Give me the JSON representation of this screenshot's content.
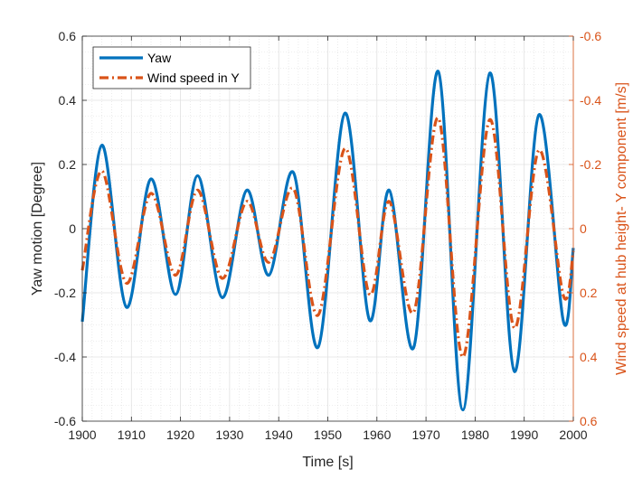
{
  "chart_data": {
    "type": "line",
    "title": "",
    "xlabel": "Time [s]",
    "ylabel": "Yaw motion [Degree]",
    "ylabel_right": "Wind speed at hub height- Y component [m/s]",
    "xlim": [
      1900,
      2000
    ],
    "ylim": [
      -0.6,
      0.6
    ],
    "ylim_right": [
      0.6,
      -0.6
    ],
    "right_axis_reversed": true,
    "xticks": [
      1900,
      1910,
      1920,
      1930,
      1940,
      1950,
      1960,
      1970,
      1980,
      1990,
      2000
    ],
    "yticks": [
      -0.6,
      -0.4,
      -0.2,
      0,
      0.2,
      0.4,
      0.6
    ],
    "yticks_right": [
      -0.6,
      -0.4,
      -0.2,
      0,
      0.2,
      0.4,
      0.6
    ],
    "xtick_labels": [
      "1900",
      "1910",
      "1920",
      "1930",
      "1940",
      "1950",
      "1960",
      "1970",
      "1980",
      "1990",
      "2000"
    ],
    "ytick_labels": [
      "-0.6",
      "-0.4",
      "-0.2",
      "0",
      "0.2",
      "0.4",
      "0.6"
    ],
    "ytick_labels_right": [
      "-0.6",
      "-0.4",
      "-0.2",
      "0",
      "0.2",
      "0.4",
      "0.6"
    ],
    "grid": true,
    "minor_grid": true,
    "legend_position": "top-left",
    "colors": {
      "left_axis": "#262626",
      "right_axis": "#d95319",
      "grid": "#dcdcdc"
    },
    "series": [
      {
        "name": "Yaw",
        "axis": "left",
        "color": "#0072bd",
        "style": "solid",
        "x": [
          1900,
          1904,
          1909,
          1914,
          1919,
          1923.5,
          1928.5,
          1933.5,
          1938,
          1943,
          1948,
          1953.5,
          1958.5,
          1962.5,
          1967.5,
          1972.5,
          1977.5,
          1983,
          1988,
          1993,
          1998,
          2000
        ],
        "y": [
          -0.29,
          0.26,
          -0.245,
          0.155,
          -0.205,
          0.165,
          -0.215,
          0.12,
          -0.145,
          0.175,
          -0.37,
          0.36,
          -0.285,
          0.12,
          -0.37,
          0.49,
          -0.565,
          0.485,
          -0.445,
          0.355,
          -0.29,
          -0.06
        ]
      },
      {
        "name": "Wind speed in Y",
        "axis": "right",
        "color": "#d95319",
        "style": "dash-dot",
        "x": [
          1900,
          1904,
          1909,
          1914,
          1919,
          1923.5,
          1928.5,
          1933.5,
          1938,
          1943,
          1948,
          1953.5,
          1958.5,
          1962.5,
          1967.5,
          1972.5,
          1977.5,
          1983,
          1988,
          1993,
          1998,
          2000
        ],
        "y": [
          0.13,
          -0.18,
          0.17,
          -0.11,
          0.145,
          -0.12,
          0.155,
          -0.085,
          0.105,
          -0.125,
          0.27,
          -0.25,
          0.205,
          -0.085,
          0.26,
          -0.345,
          0.4,
          -0.34,
          0.31,
          -0.245,
          0.21,
          0.07
        ]
      }
    ]
  }
}
